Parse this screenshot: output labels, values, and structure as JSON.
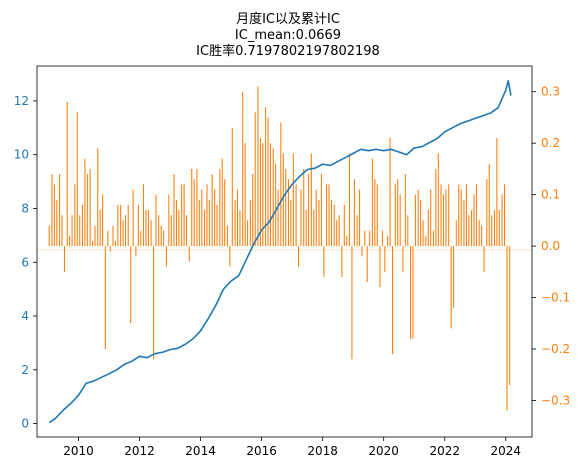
{
  "title_lines": [
    "月度IC以及累计IC",
    "IC_mean:0.0669",
    "IC胜率0.7197802197802198"
  ],
  "colors": {
    "cumulative_line": "#1f77b4",
    "monthly_bars": "#ff7f0e",
    "axes": "#000000"
  },
  "chart_data": [
    {
      "type": "line",
      "axis": "left",
      "x_unit": "year",
      "xlim": [
        2008.64,
        2024.86
      ],
      "ylim": [
        -0.5,
        13.3
      ],
      "x_ticks": [
        2010,
        2012,
        2014,
        2016,
        2018,
        2020,
        2022,
        2024
      ],
      "x_tick_labels": [
        "2010",
        "2012",
        "2014",
        "2016",
        "2018",
        "2020",
        "2022",
        "2024"
      ],
      "y_ticks": [
        0,
        2,
        4,
        6,
        8,
        10,
        12
      ],
      "y_tick_labels": [
        "0",
        "2",
        "4",
        "6",
        "8",
        "10",
        "12"
      ],
      "tick_color": "#1f77b4",
      "grid": false,
      "series": [
        {
          "color": "#1f77b4",
          "points": [
            [
              2009.04,
              0.03
            ],
            [
              2009.25,
              0.2
            ],
            [
              2009.5,
              0.5
            ],
            [
              2009.75,
              0.75
            ],
            [
              2010.0,
              1.05
            ],
            [
              2010.25,
              1.5
            ],
            [
              2010.5,
              1.58
            ],
            [
              2010.75,
              1.72
            ],
            [
              2011.0,
              1.85
            ],
            [
              2011.25,
              2.0
            ],
            [
              2011.5,
              2.2
            ],
            [
              2011.75,
              2.32
            ],
            [
              2012.0,
              2.5
            ],
            [
              2012.25,
              2.45
            ],
            [
              2012.5,
              2.6
            ],
            [
              2012.75,
              2.65
            ],
            [
              2013.0,
              2.75
            ],
            [
              2013.25,
              2.8
            ],
            [
              2013.5,
              2.95
            ],
            [
              2013.75,
              3.15
            ],
            [
              2014.0,
              3.45
            ],
            [
              2014.25,
              3.9
            ],
            [
              2014.5,
              4.4
            ],
            [
              2014.75,
              5.0
            ],
            [
              2015.0,
              5.3
            ],
            [
              2015.25,
              5.5
            ],
            [
              2015.5,
              6.1
            ],
            [
              2015.75,
              6.7
            ],
            [
              2016.0,
              7.2
            ],
            [
              2016.25,
              7.5
            ],
            [
              2016.5,
              8.0
            ],
            [
              2016.75,
              8.5
            ],
            [
              2017.0,
              8.9
            ],
            [
              2017.25,
              9.2
            ],
            [
              2017.5,
              9.45
            ],
            [
              2017.75,
              9.5
            ],
            [
              2018.0,
              9.65
            ],
            [
              2018.25,
              9.6
            ],
            [
              2018.5,
              9.75
            ],
            [
              2018.75,
              9.9
            ],
            [
              2019.0,
              10.05
            ],
            [
              2019.25,
              10.2
            ],
            [
              2019.5,
              10.15
            ],
            [
              2019.75,
              10.2
            ],
            [
              2020.0,
              10.15
            ],
            [
              2020.25,
              10.2
            ],
            [
              2020.5,
              10.1
            ],
            [
              2020.75,
              10.0
            ],
            [
              2021.0,
              10.25
            ],
            [
              2021.25,
              10.3
            ],
            [
              2021.5,
              10.45
            ],
            [
              2021.75,
              10.6
            ],
            [
              2022.0,
              10.85
            ],
            [
              2022.25,
              11.0
            ],
            [
              2022.5,
              11.15
            ],
            [
              2022.75,
              11.25
            ],
            [
              2023.0,
              11.35
            ],
            [
              2023.25,
              11.45
            ],
            [
              2023.5,
              11.55
            ],
            [
              2023.75,
              11.75
            ],
            [
              2024.0,
              12.4
            ],
            [
              2024.08,
              12.75
            ],
            [
              2024.17,
              12.2
            ]
          ]
        }
      ]
    },
    {
      "type": "bar",
      "axis": "right",
      "x_unit": "year",
      "ylim": [
        -0.371,
        0.35
      ],
      "y_ticks": [
        -0.3,
        -0.2,
        -0.1,
        0.0,
        0.1,
        0.2,
        0.3
      ],
      "y_tick_labels": [
        "−0.3",
        "−0.2",
        "−0.1",
        "0.0",
        "0.1",
        "0.2",
        "0.3"
      ],
      "tick_color": "#ff7f0e",
      "bar_width_years": 0.035,
      "series": [
        {
          "color": "#ff7f0e",
          "x": [
            2009.04,
            2009.13,
            2009.21,
            2009.29,
            2009.38,
            2009.46,
            2009.54,
            2009.63,
            2009.71,
            2009.79,
            2009.88,
            2009.96,
            2010.04,
            2010.13,
            2010.21,
            2010.29,
            2010.38,
            2010.46,
            2010.54,
            2010.63,
            2010.71,
            2010.79,
            2010.88,
            2010.96,
            2011.04,
            2011.13,
            2011.21,
            2011.29,
            2011.38,
            2011.46,
            2011.54,
            2011.63,
            2011.71,
            2011.79,
            2011.88,
            2011.96,
            2012.04,
            2012.13,
            2012.21,
            2012.29,
            2012.38,
            2012.46,
            2012.54,
            2012.63,
            2012.71,
            2012.79,
            2012.88,
            2012.96,
            2013.04,
            2013.13,
            2013.21,
            2013.29,
            2013.38,
            2013.46,
            2013.54,
            2013.63,
            2013.71,
            2013.79,
            2013.88,
            2013.96,
            2014.04,
            2014.13,
            2014.21,
            2014.29,
            2014.38,
            2014.46,
            2014.54,
            2014.63,
            2014.71,
            2014.79,
            2014.88,
            2014.96,
            2015.04,
            2015.13,
            2015.21,
            2015.29,
            2015.38,
            2015.46,
            2015.54,
            2015.63,
            2015.71,
            2015.79,
            2015.88,
            2015.96,
            2016.04,
            2016.13,
            2016.21,
            2016.29,
            2016.38,
            2016.46,
            2016.54,
            2016.63,
            2016.71,
            2016.79,
            2016.88,
            2016.96,
            2017.04,
            2017.13,
            2017.21,
            2017.29,
            2017.38,
            2017.46,
            2017.54,
            2017.63,
            2017.71,
            2017.79,
            2017.88,
            2017.96,
            2018.04,
            2018.13,
            2018.21,
            2018.29,
            2018.38,
            2018.46,
            2018.54,
            2018.63,
            2018.71,
            2018.79,
            2018.88,
            2018.96,
            2019.04,
            2019.13,
            2019.21,
            2019.29,
            2019.38,
            2019.46,
            2019.54,
            2019.63,
            2019.71,
            2019.79,
            2019.88,
            2019.96,
            2020.04,
            2020.13,
            2020.21,
            2020.29,
            2020.38,
            2020.46,
            2020.54,
            2020.63,
            2020.71,
            2020.79,
            2020.88,
            2020.96,
            2021.04,
            2021.13,
            2021.21,
            2021.29,
            2021.38,
            2021.46,
            2021.54,
            2021.63,
            2021.71,
            2021.79,
            2021.88,
            2021.96,
            2022.04,
            2022.13,
            2022.21,
            2022.29,
            2022.38,
            2022.46,
            2022.54,
            2022.63,
            2022.71,
            2022.79,
            2022.88,
            2022.96,
            2023.04,
            2023.13,
            2023.21,
            2023.29,
            2023.38,
            2023.46,
            2023.54,
            2023.63,
            2023.71,
            2023.79,
            2023.88,
            2023.96,
            2024.04,
            2024.13
          ],
          "values": [
            0.04,
            0.14,
            0.12,
            0.09,
            0.14,
            0.06,
            -0.05,
            0.28,
            0.02,
            0.06,
            0.12,
            0.26,
            0.06,
            0.08,
            0.17,
            0.14,
            0.15,
            0.01,
            0.04,
            0.19,
            0.07,
            0.1,
            -0.2,
            0.03,
            -0.01,
            0.04,
            0.01,
            0.08,
            0.08,
            0.05,
            0.06,
            0.08,
            -0.15,
            0.11,
            -0.02,
            0.08,
            0.03,
            0.12,
            0.07,
            0.07,
            0.05,
            -0.22,
            0.1,
            0.06,
            0.04,
            0.03,
            -0.04,
            0.1,
            0.06,
            0.14,
            0.09,
            0.07,
            0.12,
            0.12,
            0.06,
            -0.03,
            0.15,
            0.13,
            0.15,
            0.09,
            0.11,
            0.07,
            0.12,
            0.09,
            0.14,
            0.11,
            0.08,
            0.15,
            0.17,
            0.13,
            0.04,
            -0.04,
            0.23,
            0.09,
            0.11,
            0.07,
            0.3,
            0.2,
            0.05,
            0.09,
            0.14,
            0.26,
            0.31,
            0.21,
            0.2,
            0.27,
            0.25,
            0.2,
            0.19,
            0.16,
            0.11,
            0.24,
            0.18,
            0.15,
            0.13,
            0.09,
            0.18,
            0.12,
            -0.04,
            0.11,
            0.15,
            0.07,
            0.14,
            0.18,
            0.07,
            0.11,
            0.09,
            0.14,
            -0.06,
            0.12,
            0.12,
            0.09,
            0.08,
            0.05,
            0.06,
            -0.06,
            0.08,
            0.02,
            0.18,
            -0.22,
            0.13,
            0.06,
            0.11,
            -0.02,
            0.03,
            -0.07,
            0.03,
            0.17,
            0.13,
            0.12,
            -0.08,
            0.03,
            -0.05,
            0.02,
            0.21,
            -0.21,
            0.12,
            0.13,
            0.1,
            -0.05,
            0.14,
            0.06,
            -0.18,
            -0.18,
            0.1,
            0.11,
            0.09,
            0.05,
            0.02,
            0.07,
            0.11,
            0.03,
            0.15,
            0.18,
            0.12,
            0.1,
            0.11,
            0.12,
            -0.16,
            -0.12,
            0.05,
            0.12,
            0.11,
            0.09,
            0.12,
            0.06,
            0.07,
            0.1,
            0.12,
            0.05,
            0.04,
            -0.05,
            0.13,
            0.16,
            0.06,
            0.07,
            0.21,
            0.07,
            0.1,
            0.12,
            -0.32,
            -0.27
          ]
        }
      ]
    }
  ]
}
